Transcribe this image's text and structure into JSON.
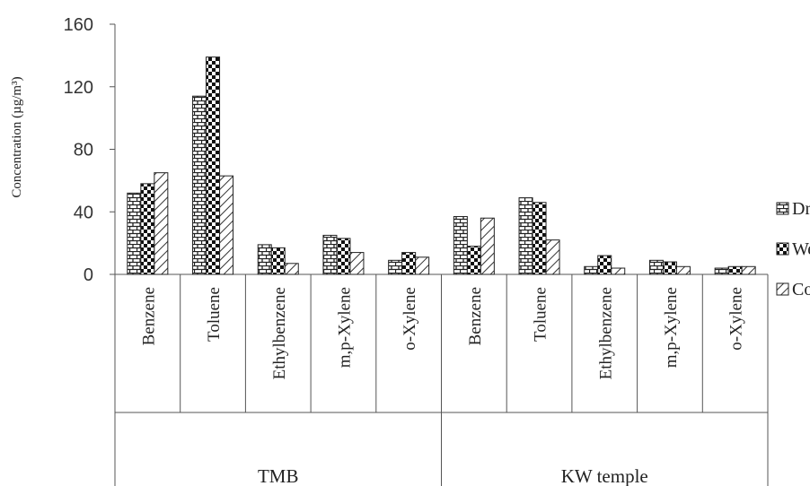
{
  "chart_data": {
    "type": "bar",
    "ylabel": "Concentration (µg/m³)",
    "ylim": [
      0,
      160
    ],
    "yticks": [
      0,
      40,
      80,
      120,
      160
    ],
    "grid": false,
    "legend_placement": "right",
    "groups": [
      {
        "name": "TMB",
        "categories": [
          "Benzene",
          "Toluene",
          "Ethylbenzene",
          "m,p-Xylene",
          "o-Xylene"
        ]
      },
      {
        "name": "KW temple",
        "categories": [
          "Benzene",
          "Toluene",
          "Ethylbenzene",
          "m,p-Xylene",
          "o-Xylene"
        ]
      }
    ],
    "categories": [
      "Benzene",
      "Toluene",
      "Ethylbenzene",
      "m,p-Xylene",
      "o-Xylene",
      "Benzene",
      "Toluene",
      "Ethylbenzene",
      "m,p-Xylene",
      "o-Xylene"
    ],
    "series": [
      {
        "name": "Dry",
        "pattern": "brick",
        "values": [
          52,
          114,
          19,
          25,
          9,
          37,
          49,
          5,
          9,
          4
        ]
      },
      {
        "name": "Wet",
        "pattern": "checker",
        "values": [
          58,
          139,
          17,
          23,
          14,
          18,
          46,
          12,
          8,
          5
        ]
      },
      {
        "name": "Cold",
        "pattern": "diagonal",
        "values": [
          65,
          63,
          7,
          14,
          11,
          36,
          22,
          4,
          5,
          5
        ]
      }
    ]
  }
}
